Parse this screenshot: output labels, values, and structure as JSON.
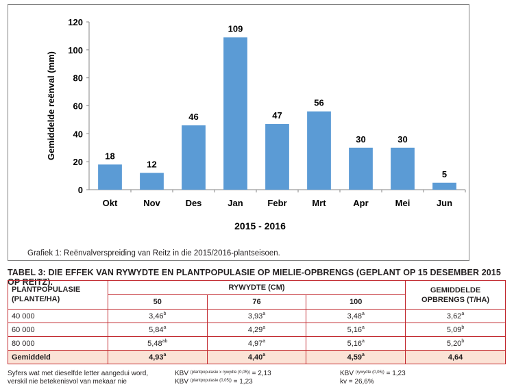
{
  "chart_data": {
    "type": "bar",
    "categories": [
      "Okt",
      "Nov",
      "Des",
      "Jan",
      "Febr",
      "Mrt",
      "Apr",
      "Mei",
      "Jun"
    ],
    "values": [
      18,
      12,
      46,
      109,
      47,
      56,
      30,
      30,
      5
    ],
    "ylabel": "Gemiddelde reënval (mm)",
    "xlabel": "2015 - 2016",
    "ylim": [
      0,
      120
    ],
    "yticks": [
      0,
      20,
      40,
      60,
      80,
      100,
      120
    ],
    "bar_color": "#5b9bd5",
    "grid": false,
    "legend": "none"
  },
  "caption": "Grafiek 1: Reënvalverspreiding van Reitz in die 2015/2016-plantseisoen.",
  "table": {
    "title": "TABEL 3: DIE EFFEK VAN RYWYDTE EN PLANTPOPULASIE OP MIELIE-OPBRENGS (GEPLANT OP 15 DESEMBER 2015 OP REITZ).",
    "header_pop_line1": "PLANTPOPULASIE",
    "header_pop_line2": "(PLANTE/HA)",
    "header_row": "RYWYDTE (CM)",
    "header_avg_line1": "GEMIDDELDE",
    "header_avg_line2": "OPBRENGS (T/HA)",
    "sub_headers": [
      "50",
      "76",
      "100"
    ],
    "rows": [
      {
        "label": "40 000",
        "cells": [
          {
            "v": "3,46",
            "s": "b"
          },
          {
            "v": "3,93",
            "s": "a"
          },
          {
            "v": "3,48",
            "s": "a"
          },
          {
            "v": "3,62",
            "s": "a"
          }
        ]
      },
      {
        "label": "60 000",
        "cells": [
          {
            "v": "5,84",
            "s": "a"
          },
          {
            "v": "4,29",
            "s": "a"
          },
          {
            "v": "5,16",
            "s": "a"
          },
          {
            "v": "5,09",
            "s": "b"
          }
        ]
      },
      {
        "label": "80 000",
        "cells": [
          {
            "v": "5,48",
            "s": "ab"
          },
          {
            "v": "4,97",
            "s": "a"
          },
          {
            "v": "5,16",
            "s": "a"
          },
          {
            "v": "5,20",
            "s": "b"
          }
        ]
      },
      {
        "label": "Gemiddeld",
        "cells": [
          {
            "v": "4,93",
            "s": "a"
          },
          {
            "v": "4,40",
            "s": "a"
          },
          {
            "v": "4,59",
            "s": "a"
          },
          {
            "v": "4,64",
            "s": ""
          }
        ]
      }
    ],
    "border_color": "#c1272d",
    "avg_row_color": "#fbe3d6"
  },
  "footnotes": {
    "note_line1": "Syfers wat met dieselfde letter aangedui word,",
    "note_line2": "verskil nie betekenisvol van mekaar nie",
    "kbv1_pre": "KBV",
    "kbv1_sub": "(plantpopulasie x rywydte (0,05))",
    "kbv1_val": "= 2,13",
    "kbv2_pre": "KBV",
    "kbv2_sub": "(plantpopulasie (0,05))",
    "kbv2_val": "= 1,23",
    "kbv3_pre": "KBV",
    "kbv3_sub": "(rywydte (0,05))",
    "kbv3_val": "= 1,23",
    "kv": "kv = 26,6%"
  }
}
